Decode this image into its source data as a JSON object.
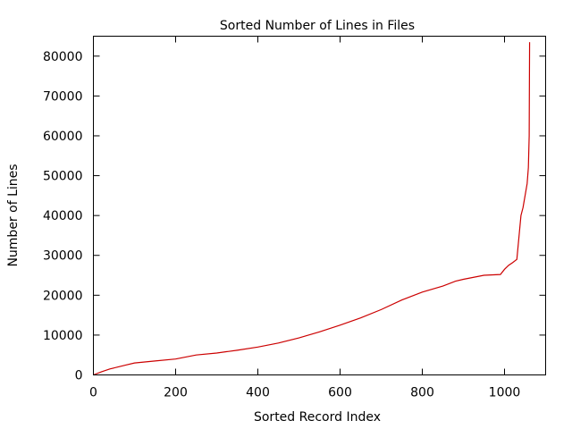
{
  "chart_data": {
    "type": "line",
    "title": "Sorted Number of Lines in Files",
    "xlabel": "Sorted Record Index",
    "ylabel": "Number of Lines",
    "xlim": [
      0,
      1100
    ],
    "ylim": [
      0,
      85000
    ],
    "xticks": [
      0,
      200,
      400,
      600,
      800,
      1000
    ],
    "xtick_labels": [
      "0",
      "200",
      "400",
      "600",
      "800",
      "1000"
    ],
    "yticks": [
      0,
      10000,
      20000,
      30000,
      40000,
      50000,
      60000,
      70000,
      80000
    ],
    "ytick_labels": [
      "0",
      "10000",
      "20000",
      "30000",
      "40000",
      "50000",
      "60000",
      "70000",
      "80000"
    ],
    "grid": false,
    "series": [
      {
        "color": "#cc0000",
        "x": [
          0,
          20,
          40,
          60,
          80,
          100,
          150,
          200,
          250,
          300,
          350,
          400,
          450,
          500,
          550,
          600,
          650,
          700,
          750,
          800,
          850,
          880,
          900,
          950,
          990,
          1000,
          1010,
          1020,
          1030,
          1040,
          1045,
          1050,
          1055,
          1058,
          1060,
          1061
        ],
        "y": [
          0,
          800,
          1500,
          2000,
          2500,
          3000,
          3500,
          4000,
          5000,
          5500,
          6200,
          7000,
          8000,
          9300,
          10800,
          12500,
          14300,
          16400,
          18800,
          20800,
          22300,
          23500,
          24000,
          25000,
          25200,
          26500,
          27500,
          28200,
          29000,
          40000,
          42000,
          45000,
          48000,
          52000,
          60000,
          83500
        ]
      }
    ]
  }
}
